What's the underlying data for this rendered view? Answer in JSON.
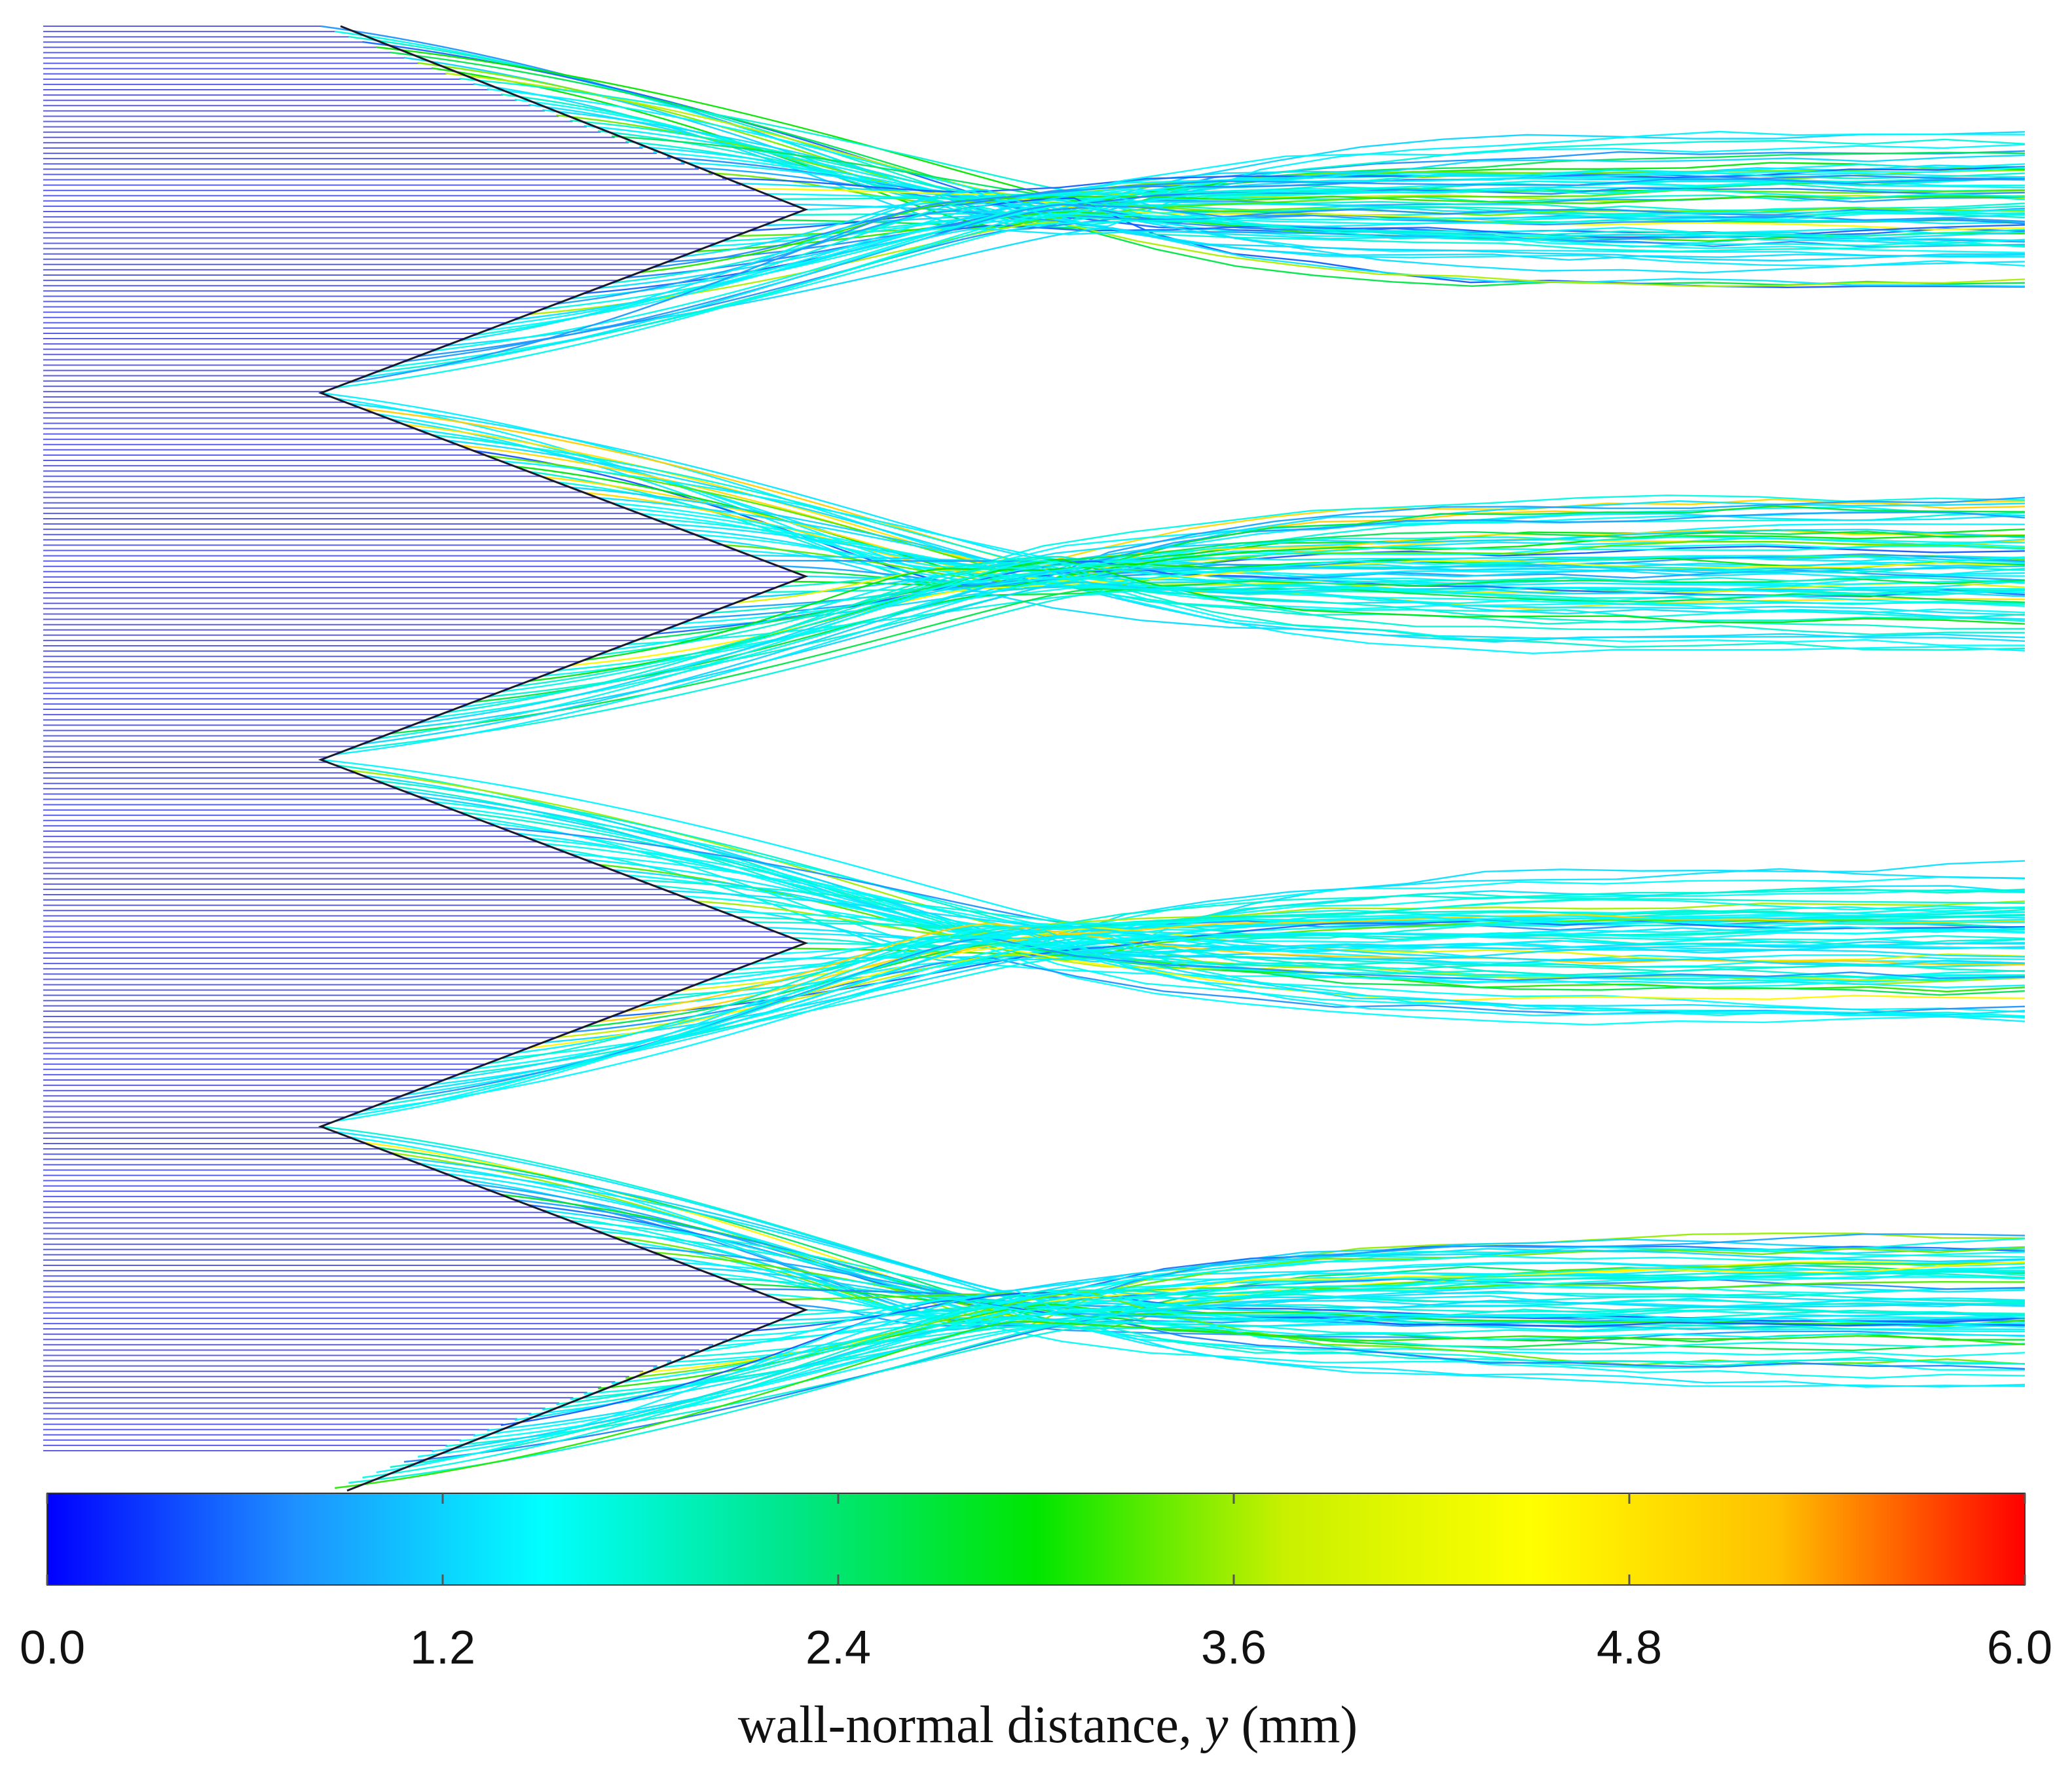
{
  "figure": {
    "wedge_count": 4,
    "streamline_colormap": "jet",
    "wedge_outline_color": "#1a1a2e",
    "upstream_color": "#4a4ae6"
  },
  "colorbar": {
    "min": 0.0,
    "max": 6.0,
    "ticks": [
      "0.0",
      "1.2",
      "2.4",
      "3.6",
      "4.8",
      "6.0"
    ],
    "tick_values": [
      0.0,
      1.2,
      2.4,
      3.6,
      4.8,
      6.0
    ],
    "label_prefix": "wall-normal distance, ",
    "label_var": "y",
    "label_suffix": " (mm)",
    "colors": [
      "#0000ff",
      "#1e90ff",
      "#00ffff",
      "#00e68a",
      "#00e600",
      "#c8f000",
      "#ffff00",
      "#ffc000",
      "#ff0000"
    ]
  }
}
